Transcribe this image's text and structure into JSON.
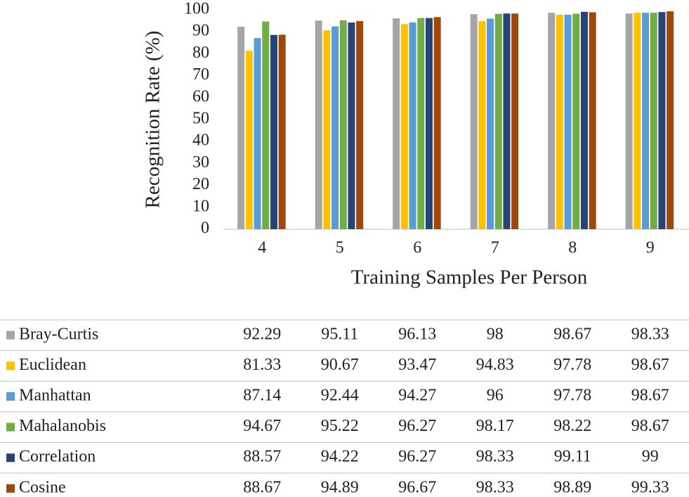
{
  "chart_data": {
    "type": "bar",
    "x_label": "Training Samples Per Person",
    "y_label": "Recognition Rate (%)",
    "categories": [
      "4",
      "5",
      "6",
      "7",
      "8",
      "9"
    ],
    "ylim": [
      0,
      100
    ],
    "yticks": [
      0,
      10,
      20,
      30,
      40,
      50,
      60,
      70,
      80,
      90,
      100
    ],
    "series": [
      {
        "name": "Bray-Curtis",
        "color": "#a5a5a5",
        "values": [
          92.29,
          95.11,
          96.13,
          98,
          98.67,
          98.33
        ]
      },
      {
        "name": "Euclidean",
        "color": "#ffc000",
        "values": [
          81.33,
          90.67,
          93.47,
          94.83,
          97.78,
          98.67
        ]
      },
      {
        "name": "Manhattan",
        "color": "#5b9bd5",
        "values": [
          87.14,
          92.44,
          94.27,
          96,
          97.78,
          98.67
        ]
      },
      {
        "name": "Mahalanobis",
        "color": "#70ad47",
        "values": [
          94.67,
          95.22,
          96.27,
          98.17,
          98.22,
          98.67
        ]
      },
      {
        "name": "Correlation",
        "color": "#264478",
        "values": [
          88.57,
          94.22,
          96.27,
          98.33,
          99.11,
          99
        ]
      },
      {
        "name": "Cosine",
        "color": "#9e480e",
        "values": [
          88.67,
          94.89,
          96.67,
          98.33,
          98.89,
          99.33
        ]
      }
    ]
  }
}
